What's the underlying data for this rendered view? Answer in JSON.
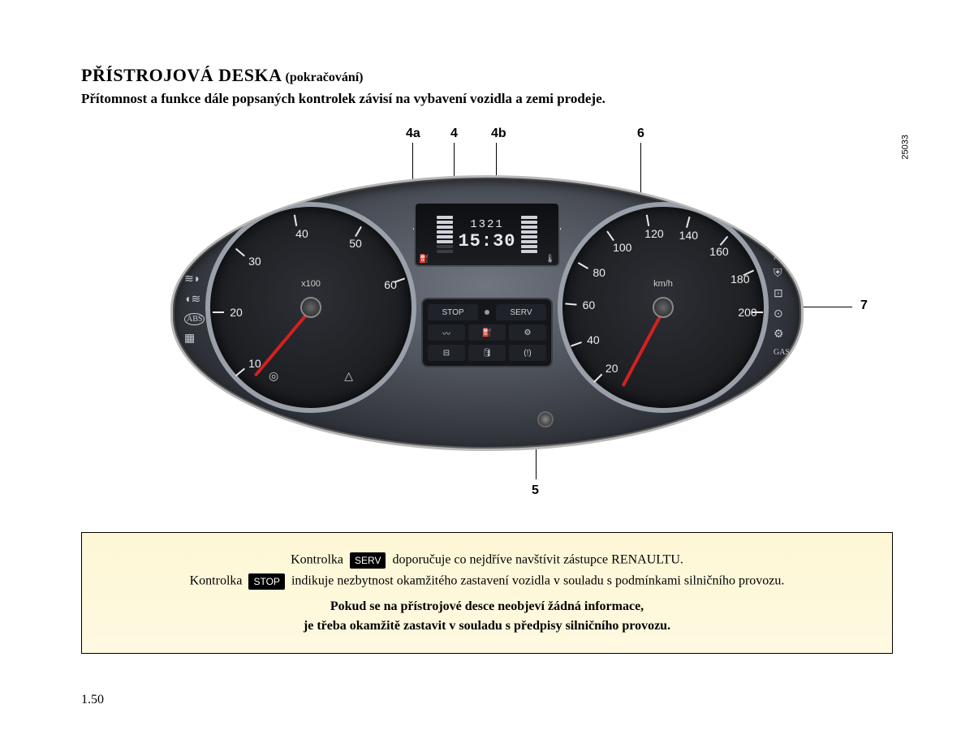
{
  "title": {
    "main": "PŘÍSTROJOVÁ DESKA",
    "sub": "(pokračování)"
  },
  "subtitle": "Přítomnost a funkce dále popsaných kontrolek závisí na vybavení vozidla a zemi prodeje.",
  "image_id": "25033",
  "callouts": {
    "c4a": "4a",
    "c4": "4",
    "c4b": "4b",
    "c5": "5",
    "c6": "6",
    "c7": "7"
  },
  "lcd": {
    "line1": "1321",
    "line2": "15:30"
  },
  "tacho": {
    "unit": "x100",
    "numbers": [
      "10",
      "20",
      "30",
      "40",
      "50",
      "60"
    ],
    "angles": [
      -130,
      -90,
      -50,
      -10,
      30,
      70
    ]
  },
  "speedo": {
    "unit": "km/h",
    "numbers": [
      "20",
      "40",
      "60",
      "80",
      "100",
      "120",
      "140",
      "160",
      "180",
      "200"
    ],
    "angles": [
      -135,
      -110,
      -85,
      -60,
      -35,
      -10,
      15,
      40,
      65,
      90
    ]
  },
  "warn": {
    "stop": "STOP",
    "serv": "SERV",
    "gas": "GAS"
  },
  "notebox": {
    "l1a": "Kontrolka",
    "l1_badge": "SERV",
    "l1b": "doporučuje co nejdříve navštívit zástupce RENAULTU.",
    "l2a": "Kontrolka",
    "l2_badge": "STOP",
    "l2b": "indikuje nezbytnost okamžitého zastavení vozidla v souladu s podmínkami silničního provozu.",
    "l3": "Pokud se na přístrojové desce neobjeví žádná informace,",
    "l4": "je třeba okamžitě zastavit v souladu s předpisy silničního provozu."
  },
  "page_number": "1.50",
  "colors": {
    "note_bg": "#fdf7d6",
    "needle": "#d62020"
  }
}
